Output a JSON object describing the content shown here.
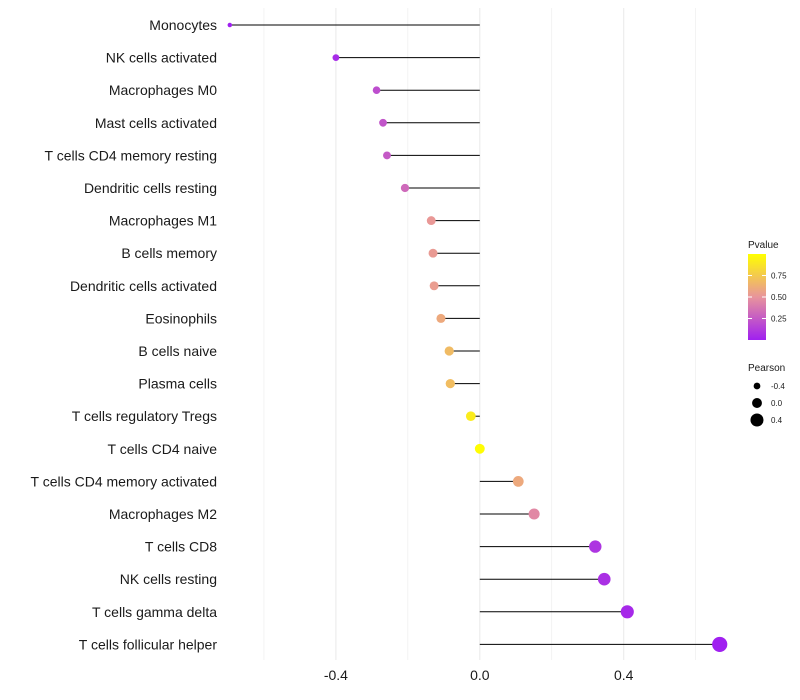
{
  "chart_data": {
    "type": "lollipop",
    "title": "",
    "xlabel": "",
    "ylabel": "",
    "xlim": [
      -0.7,
      0.69
    ],
    "x_ticks": [
      {
        "value": -0.4,
        "label": "-0.4"
      },
      {
        "value": 0.0,
        "label": "0.0"
      },
      {
        "value": 0.4,
        "label": "0.4"
      }
    ],
    "grid": true,
    "categories": [
      "Monocytes",
      "NK cells activated",
      "Macrophages M0",
      "Mast cells activated",
      "T cells CD4 memory resting",
      "Dendritic cells resting",
      "Macrophages M1",
      "B cells memory",
      "Dendritic cells activated",
      "Eosinophils",
      "B cells naive",
      "Plasma cells",
      "T cells regulatory  Tregs ",
      "T cells CD4 naive",
      "T cells CD4 memory activated",
      "Macrophages M2",
      "T cells CD8",
      "NK cells resting",
      "T cells gamma delta",
      "T cells follicular helper"
    ],
    "pearson": [
      -0.695,
      -0.4,
      -0.287,
      -0.269,
      -0.258,
      -0.208,
      -0.135,
      -0.13,
      -0.127,
      -0.108,
      -0.085,
      -0.082,
      -0.025,
      0.0,
      0.107,
      0.151,
      0.321,
      0.346,
      0.41,
      0.667
    ],
    "pvalue": [
      0.0005,
      0.05,
      0.2,
      0.23,
      0.25,
      0.32,
      0.52,
      0.53,
      0.54,
      0.6,
      0.68,
      0.69,
      0.91,
      0.99,
      0.6,
      0.45,
      0.09,
      0.07,
      0.04,
      0.0005
    ],
    "legend": {
      "placement": "right",
      "color": {
        "title": "Pvalue",
        "ticks": [
          {
            "value": 0.25,
            "label": "0.25"
          },
          {
            "value": 0.5,
            "label": "0.50"
          },
          {
            "value": 0.75,
            "label": "0.75"
          }
        ],
        "range": [
          0,
          1
        ],
        "low_color": "#a020f0",
        "mid_color": "#e8949c",
        "high_color": "#ffff00"
      },
      "size": {
        "title": "Pearson",
        "entries": [
          {
            "value": -0.4,
            "label": "-0.4"
          },
          {
            "value": 0.0,
            "label": "0.0"
          },
          {
            "value": 0.4,
            "label": "0.4"
          }
        ]
      }
    }
  },
  "colors": {
    "gridline": "#ebebeb",
    "segment": "#000000"
  }
}
